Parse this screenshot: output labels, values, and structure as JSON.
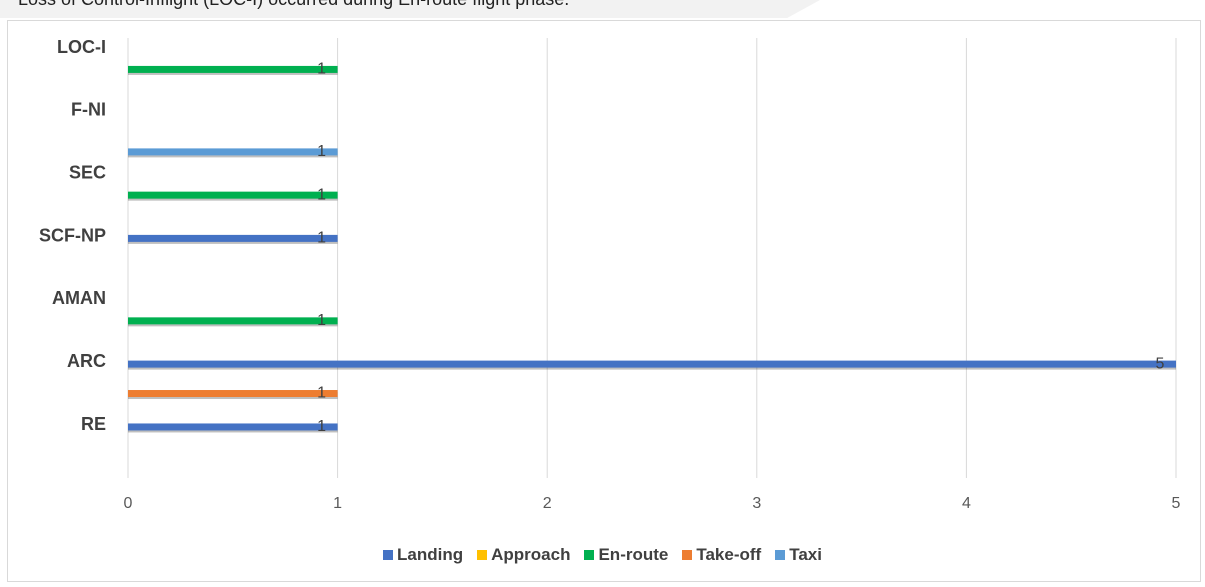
{
  "caption": "Loss of Control-Inflight (LOC-I) occurred during En-route flight phase.",
  "chart_data": {
    "type": "bar",
    "orientation": "horizontal",
    "title": "",
    "xlabel": "",
    "ylabel": "",
    "xlim": [
      0,
      5
    ],
    "x_ticks": [
      "0",
      "1",
      "2",
      "3",
      "4",
      "5"
    ],
    "grid": true,
    "legend_position": "bottom",
    "categories": [
      "LOC-I",
      "F-NI",
      "SEC",
      "SCF-NP",
      "AMAN",
      "ARC",
      "RE"
    ],
    "series": [
      {
        "name": "Landing",
        "color": "#4472c4",
        "values": [
          0,
          0,
          0,
          1,
          0,
          5,
          1
        ]
      },
      {
        "name": "Approach",
        "color": "#ffc000",
        "values": [
          0,
          0,
          0,
          0,
          0,
          0,
          0
        ]
      },
      {
        "name": "En-route",
        "color": "#00b050",
        "values": [
          1,
          0,
          1,
          0,
          1,
          0,
          0
        ]
      },
      {
        "name": "Take-off",
        "color": "#ed7d31",
        "values": [
          0,
          0,
          0,
          0,
          0,
          1,
          0
        ]
      },
      {
        "name": "Taxi",
        "color": "#5b9bd5",
        "values": [
          0,
          1,
          0,
          0,
          0,
          0,
          0
        ]
      }
    ]
  }
}
